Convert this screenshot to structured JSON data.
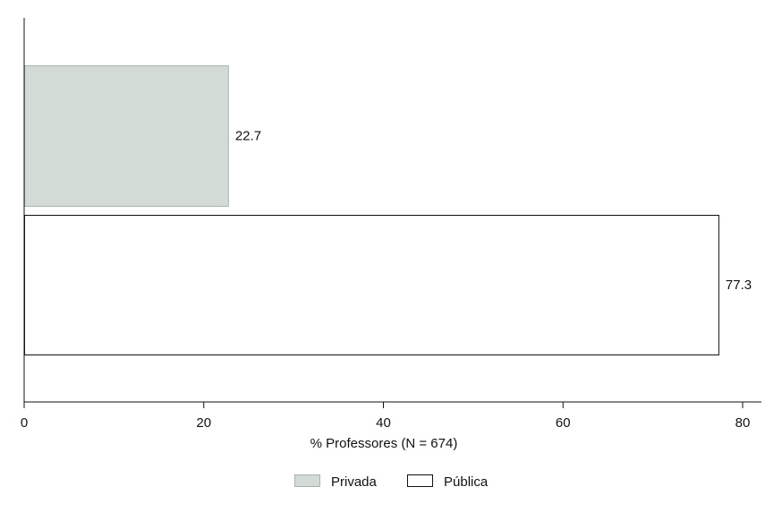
{
  "chart_data": {
    "type": "bar",
    "orientation": "horizontal",
    "series": [
      {
        "name": "Privada",
        "value": 22.7,
        "label": "22.7",
        "color": "#d3dbd6",
        "stroke": "#a9b4ae"
      },
      {
        "name": "Pública",
        "value": 77.3,
        "label": "77.3",
        "color": "#ffffff",
        "stroke": "#111111"
      }
    ],
    "xlabel": "% Professores (N = 674)",
    "ylabel": "",
    "title": "",
    "xlim": [
      0,
      82
    ],
    "xticks": [
      0,
      20,
      40,
      60,
      80
    ],
    "xtick_labels": [
      "0",
      "20",
      "40",
      "60",
      "80"
    ],
    "grid": false,
    "legend_position": "bottom"
  }
}
